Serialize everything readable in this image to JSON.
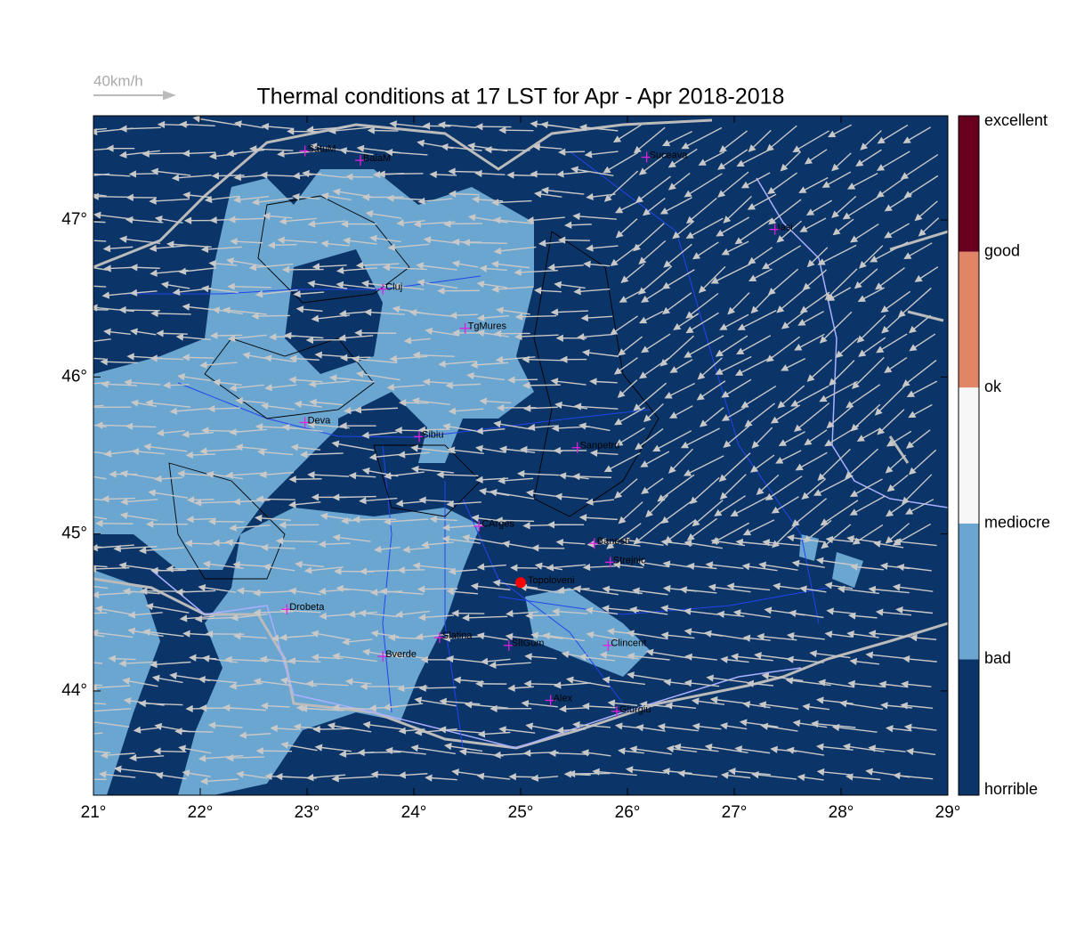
{
  "map": {
    "title": "Thermal conditions at 17 LST for Apr - Apr  2018-2018",
    "wind_scale_label": "40km/h",
    "xlim": [
      21,
      29
    ],
    "ylim": [
      43.336,
      47.664
    ],
    "xticks": [
      {
        "value": 21,
        "label": "21°"
      },
      {
        "value": 22,
        "label": "22°"
      },
      {
        "value": 23,
        "label": "23°"
      },
      {
        "value": 24,
        "label": "24°"
      },
      {
        "value": 25,
        "label": "25°"
      },
      {
        "value": 26,
        "label": "26°"
      },
      {
        "value": 27,
        "label": "27°"
      },
      {
        "value": 28,
        "label": "28°"
      },
      {
        "value": 29,
        "label": "29°"
      }
    ],
    "yticks": [
      {
        "value": 44,
        "label": "44°"
      },
      {
        "value": 45,
        "label": "45°"
      },
      {
        "value": 46,
        "label": "46°"
      },
      {
        "value": 47,
        "label": "47°"
      }
    ],
    "colorbar": {
      "labels": [
        "horrible",
        "bad",
        "mediocre",
        "ok",
        "good",
        "excellent"
      ],
      "colors": [
        "#0b3468",
        "#6aa6d0",
        "#f7f7f7",
        "#e08566",
        "#67001f"
      ]
    },
    "places": [
      {
        "name": "SatuM",
        "lon": 22.98,
        "lat": 47.44
      },
      {
        "name": "BaiaM",
        "lon": 23.5,
        "lat": 47.38
      },
      {
        "name": "Suceava",
        "lon": 26.18,
        "lat": 47.4
      },
      {
        "name": "Iasi",
        "lon": 27.38,
        "lat": 46.94
      },
      {
        "name": "Cluj",
        "lon": 23.71,
        "lat": 46.56
      },
      {
        "name": "TgMures",
        "lon": 24.48,
        "lat": 46.31
      },
      {
        "name": "Deva",
        "lon": 22.98,
        "lat": 45.71
      },
      {
        "name": "Sibiu",
        "lon": 24.05,
        "lat": 45.62
      },
      {
        "name": "Sanpetru",
        "lon": 25.53,
        "lat": 45.55
      },
      {
        "name": "CArges",
        "lon": 24.61,
        "lat": 45.05
      },
      {
        "name": "Banesti",
        "lon": 25.69,
        "lat": 44.94
      },
      {
        "name": "Strejnic",
        "lon": 25.84,
        "lat": 44.82
      },
      {
        "name": "Drobeta",
        "lon": 22.81,
        "lat": 44.52
      },
      {
        "name": "Slatina",
        "lon": 24.24,
        "lat": 44.34
      },
      {
        "name": "SltGum",
        "lon": 24.89,
        "lat": 44.29
      },
      {
        "name": "Bverde",
        "lon": 23.71,
        "lat": 44.22
      },
      {
        "name": "Clincent",
        "lon": 25.82,
        "lat": 44.29
      },
      {
        "name": "Alex",
        "lon": 25.28,
        "lat": 43.94
      },
      {
        "name": "Giurgiu",
        "lon": 25.9,
        "lat": 43.87
      }
    ],
    "site": {
      "name": "Topoloveni",
      "lon": 25.0,
      "lat": 44.69,
      "color": "#ff0000"
    }
  }
}
